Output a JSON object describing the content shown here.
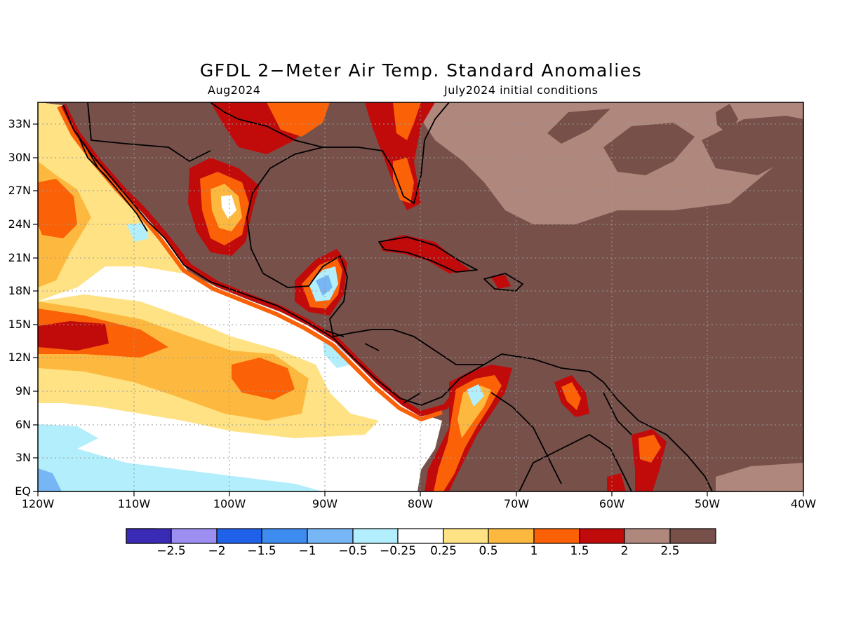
{
  "title": "GFDL 2−Meter Air Temp. Standard Anomalies",
  "valid_month": "Aug2024",
  "initial_conditions": "July2024 initial conditions",
  "lat_labels": [
    "33N",
    "30N",
    "27N",
    "24N",
    "21N",
    "18N",
    "15N",
    "12N",
    "9N",
    "6N",
    "3N",
    "EQ"
  ],
  "lon_labels": [
    "120W",
    "110W",
    "100W",
    "90W",
    "80W",
    "70W",
    "60W",
    "50W",
    "40W"
  ],
  "colorbar": {
    "colors": [
      "#3a2bb6",
      "#9d8ff2",
      "#1f61e9",
      "#3f8cf0",
      "#77b6f4",
      "#b2eefb",
      "#ffffff",
      "#fee283",
      "#fdb93f",
      "#fb6107",
      "#c10b0b",
      "#b0877c",
      "#77504a"
    ],
    "labels": [
      "−2.5",
      "−2",
      "−1.5",
      "−1",
      "−0.5",
      "−0.25",
      "0.25",
      "0.5",
      "1",
      "1.5",
      "2",
      "2.5"
    ]
  },
  "map": {
    "lon_range": [
      "120W",
      "40W"
    ],
    "lat_range": [
      "EQ",
      "35N"
    ],
    "grid": "dotted",
    "land_color": "brown (> 2.5)"
  }
}
